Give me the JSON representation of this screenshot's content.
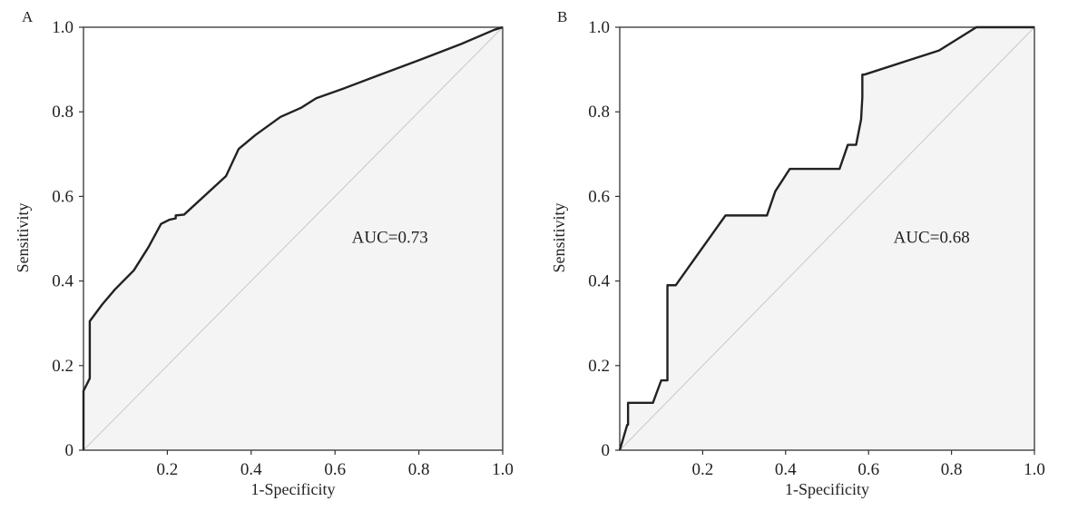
{
  "chart_data": [
    {
      "type": "line",
      "panel_label": "A",
      "xlabel": "1-Specificity",
      "ylabel": "Sensitivity",
      "xlim": [
        0,
        1
      ],
      "ylim": [
        0,
        1
      ],
      "x_ticks": [
        "0.2",
        "0.4",
        "0.6",
        "0.8",
        "1.0"
      ],
      "y_ticks": [
        "0",
        "0.2",
        "0.4",
        "0.6",
        "0.8",
        "1.0"
      ],
      "annotation": "AUC=0.73",
      "grid": false,
      "series": [
        {
          "x": [
            0,
            0,
            0.015,
            0.015,
            0.045,
            0.075,
            0.12,
            0.155,
            0.185,
            0.205,
            0.22,
            0.22,
            0.24,
            0.34,
            0.37,
            0.41,
            0.47,
            0.52,
            0.555,
            0.62,
            0.7,
            0.8,
            0.9,
            0.98,
            1.0
          ],
          "y": [
            0,
            0.14,
            0.17,
            0.305,
            0.345,
            0.38,
            0.425,
            0.48,
            0.535,
            0.545,
            0.548,
            0.555,
            0.557,
            0.648,
            0.712,
            0.745,
            0.788,
            0.81,
            0.832,
            0.855,
            0.885,
            0.922,
            0.96,
            0.994,
            1.0
          ]
        },
        {
          "x": [
            0,
            1
          ],
          "y": [
            0,
            1
          ]
        }
      ]
    },
    {
      "type": "line",
      "panel_label": "B",
      "xlabel": "1-Specificity",
      "ylabel": "Sensitivity",
      "xlim": [
        0,
        1
      ],
      "ylim": [
        0,
        1
      ],
      "x_ticks": [
        "0.2",
        "0.4",
        "0.6",
        "0.8",
        "1.0"
      ],
      "y_ticks": [
        "0",
        "0.2",
        "0.4",
        "0.6",
        "0.8",
        "1.0"
      ],
      "annotation": "AUC=0.68",
      "grid": false,
      "series": [
        {
          "x": [
            0,
            0.018,
            0.02,
            0.02,
            0.08,
            0.1,
            0.115,
            0.115,
            0.135,
            0.255,
            0.355,
            0.375,
            0.41,
            0.53,
            0.55,
            0.57,
            0.582,
            0.585,
            0.585,
            0.59,
            0.77,
            0.86,
            1.0
          ],
          "y": [
            0,
            0.06,
            0.06,
            0.112,
            0.112,
            0.165,
            0.165,
            0.39,
            0.39,
            0.555,
            0.555,
            0.612,
            0.665,
            0.665,
            0.722,
            0.722,
            0.782,
            0.835,
            0.888,
            0.888,
            0.945,
            1.0,
            1.0
          ]
        },
        {
          "x": [
            0,
            1
          ],
          "y": [
            0,
            1
          ]
        }
      ]
    }
  ]
}
